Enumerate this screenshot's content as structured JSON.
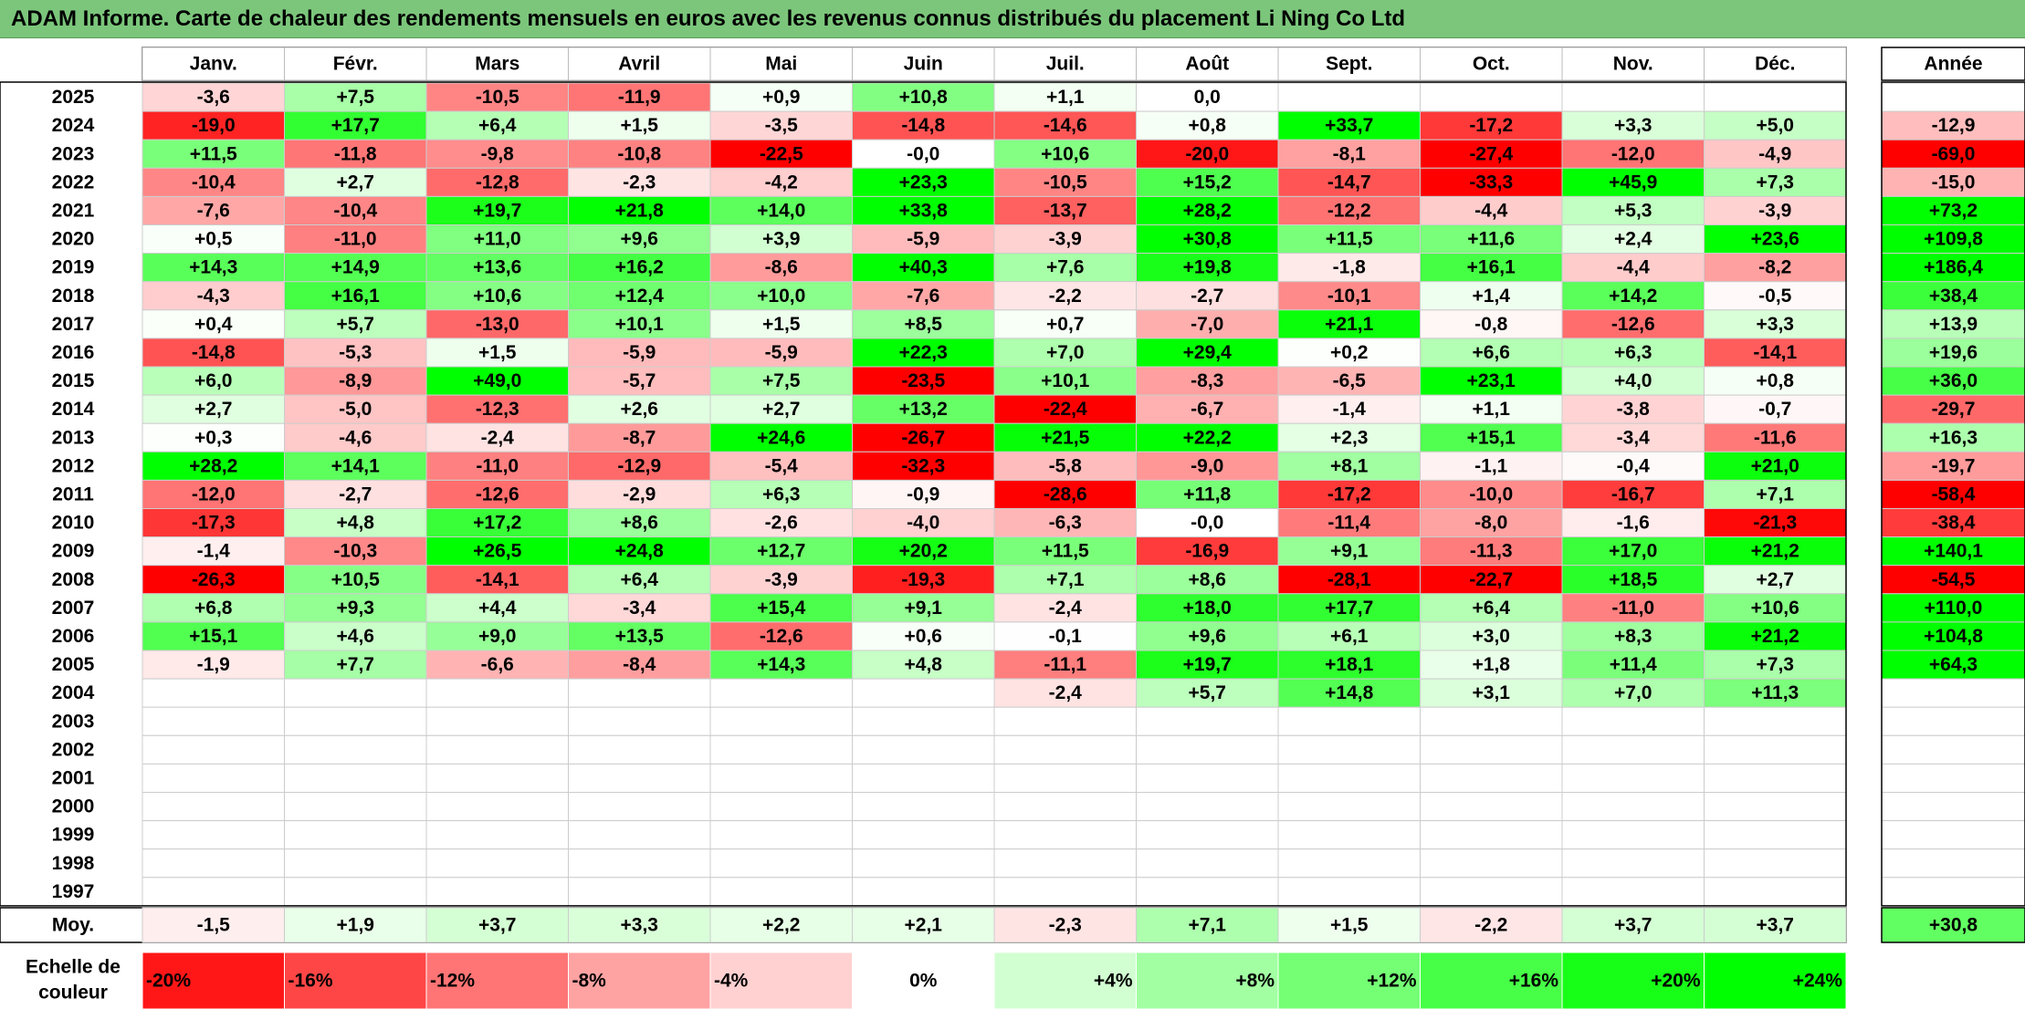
{
  "title": "ADAM Informe. Carte de chaleur des rendements mensuels en euros avec les revenus connus distribués du placement Li Ning Co Ltd",
  "chart_data": {
    "type": "heatmap",
    "title": "ADAM Informe. Carte de chaleur des rendements mensuels en euros avec les revenus connus distribués du placement Li Ning Co Ltd",
    "months": [
      "Janv.",
      "Févr.",
      "Mars",
      "Avril",
      "Mai",
      "Juin",
      "Juil.",
      "Août",
      "Sept.",
      "Oct.",
      "Nov.",
      "Déc."
    ],
    "year_header": "Année",
    "years": [
      "2025",
      "2024",
      "2023",
      "2022",
      "2021",
      "2020",
      "2019",
      "2018",
      "2017",
      "2016",
      "2015",
      "2014",
      "2013",
      "2012",
      "2011",
      "2010",
      "2009",
      "2008",
      "2007",
      "2006",
      "2005",
      "2004",
      "2003",
      "2002",
      "2001",
      "2000",
      "1999",
      "1998",
      "1997"
    ],
    "values": [
      [
        "-3,6",
        "+7,5",
        "-10,5",
        "-11,9",
        "+0,9",
        "+10,8",
        "+1,1",
        "0,0",
        "",
        "",
        "",
        ""
      ],
      [
        "-19,0",
        "+17,7",
        "+6,4",
        "+1,5",
        "-3,5",
        "-14,8",
        "-14,6",
        "+0,8",
        "+33,7",
        "-17,2",
        "+3,3",
        "+5,0"
      ],
      [
        "+11,5",
        "-11,8",
        "-9,8",
        "-10,8",
        "-22,5",
        "-0,0",
        "+10,6",
        "-20,0",
        "-8,1",
        "-27,4",
        "-12,0",
        "-4,9"
      ],
      [
        "-10,4",
        "+2,7",
        "-12,8",
        "-2,3",
        "-4,2",
        "+23,3",
        "-10,5",
        "+15,2",
        "-14,7",
        "-33,3",
        "+45,9",
        "+7,3"
      ],
      [
        "-7,6",
        "-10,4",
        "+19,7",
        "+21,8",
        "+14,0",
        "+33,8",
        "-13,7",
        "+28,2",
        "-12,2",
        "-4,4",
        "+5,3",
        "-3,9"
      ],
      [
        "+0,5",
        "-11,0",
        "+11,0",
        "+9,6",
        "+3,9",
        "-5,9",
        "-3,9",
        "+30,8",
        "+11,5",
        "+11,6",
        "+2,4",
        "+23,6"
      ],
      [
        "+14,3",
        "+14,9",
        "+13,6",
        "+16,2",
        "-8,6",
        "+40,3",
        "+7,6",
        "+19,8",
        "-1,8",
        "+16,1",
        "-4,4",
        "-8,2"
      ],
      [
        "-4,3",
        "+16,1",
        "+10,6",
        "+12,4",
        "+10,0",
        "-7,6",
        "-2,2",
        "-2,7",
        "-10,1",
        "+1,4",
        "+14,2",
        "-0,5"
      ],
      [
        "+0,4",
        "+5,7",
        "-13,0",
        "+10,1",
        "+1,5",
        "+8,5",
        "+0,7",
        "-7,0",
        "+21,1",
        "-0,8",
        "-12,6",
        "+3,3"
      ],
      [
        "-14,8",
        "-5,3",
        "+1,5",
        "-5,9",
        "-5,9",
        "+22,3",
        "+7,0",
        "+29,4",
        "+0,2",
        "+6,6",
        "+6,3",
        "-14,1"
      ],
      [
        "+6,0",
        "-8,9",
        "+49,0",
        "-5,7",
        "+7,5",
        "-23,5",
        "+10,1",
        "-8,3",
        "-6,5",
        "+23,1",
        "+4,0",
        "+0,8"
      ],
      [
        "+2,7",
        "-5,0",
        "-12,3",
        "+2,6",
        "+2,7",
        "+13,2",
        "-22,4",
        "-6,7",
        "-1,4",
        "+1,1",
        "-3,8",
        "-0,7"
      ],
      [
        "+0,3",
        "-4,6",
        "-2,4",
        "-8,7",
        "+24,6",
        "-26,7",
        "+21,5",
        "+22,2",
        "+2,3",
        "+15,1",
        "-3,4",
        "-11,6"
      ],
      [
        "+28,2",
        "+14,1",
        "-11,0",
        "-12,9",
        "-5,4",
        "-32,3",
        "-5,8",
        "-9,0",
        "+8,1",
        "-1,1",
        "-0,4",
        "+21,0"
      ],
      [
        "-12,0",
        "-2,7",
        "-12,6",
        "-2,9",
        "+6,3",
        "-0,9",
        "-28,6",
        "+11,8",
        "-17,2",
        "-10,0",
        "-16,7",
        "+7,1"
      ],
      [
        "-17,3",
        "+4,8",
        "+17,2",
        "+8,6",
        "-2,6",
        "-4,0",
        "-6,3",
        "-0,0",
        "-11,4",
        "-8,0",
        "-1,6",
        "-21,3"
      ],
      [
        "-1,4",
        "-10,3",
        "+26,5",
        "+24,8",
        "+12,7",
        "+20,2",
        "+11,5",
        "-16,9",
        "+9,1",
        "-11,3",
        "+17,0",
        "+21,2"
      ],
      [
        "-26,3",
        "+10,5",
        "-14,1",
        "+6,4",
        "-3,9",
        "-19,3",
        "+7,1",
        "+8,6",
        "-28,1",
        "-22,7",
        "+18,5",
        "+2,7"
      ],
      [
        "+6,8",
        "+9,3",
        "+4,4",
        "-3,4",
        "+15,4",
        "+9,1",
        "-2,4",
        "+18,0",
        "+17,7",
        "+6,4",
        "-11,0",
        "+10,6"
      ],
      [
        "+15,1",
        "+4,6",
        "+9,0",
        "+13,5",
        "-12,6",
        "+0,6",
        "-0,1",
        "+9,6",
        "+6,1",
        "+3,0",
        "+8,3",
        "+21,2"
      ],
      [
        "-1,9",
        "+7,7",
        "-6,6",
        "-8,4",
        "+14,3",
        "+4,8",
        "-11,1",
        "+19,7",
        "+18,1",
        "+1,8",
        "+11,4",
        "+7,3"
      ],
      [
        "",
        "",
        "",
        "",
        "",
        "",
        "-2,4",
        "+5,7",
        "+14,8",
        "+3,1",
        "+7,0",
        "+11,3"
      ],
      [
        "",
        "",
        "",
        "",
        "",
        "",
        "",
        "",
        "",
        "",
        "",
        ""
      ],
      [
        "",
        "",
        "",
        "",
        "",
        "",
        "",
        "",
        "",
        "",
        "",
        ""
      ],
      [
        "",
        "",
        "",
        "",
        "",
        "",
        "",
        "",
        "",
        "",
        "",
        ""
      ],
      [
        "",
        "",
        "",
        "",
        "",
        "",
        "",
        "",
        "",
        "",
        "",
        ""
      ],
      [
        "",
        "",
        "",
        "",
        "",
        "",
        "",
        "",
        "",
        "",
        "",
        ""
      ],
      [
        "",
        "",
        "",
        "",
        "",
        "",
        "",
        "",
        "",
        "",
        "",
        ""
      ],
      [
        "",
        "",
        "",
        "",
        "",
        "",
        "",
        "",
        "",
        "",
        "",
        ""
      ]
    ],
    "annual": [
      "",
      "-12,9",
      "-69,0",
      "-15,0",
      "+73,2",
      "+109,8",
      "+186,4",
      "+38,4",
      "+13,9",
      "+19,6",
      "+36,0",
      "-29,7",
      "+16,3",
      "-19,7",
      "-58,4",
      "-38,4",
      "+140,1",
      "-54,5",
      "+110,0",
      "+104,8",
      "+64,3",
      "",
      "",
      "",
      "",
      "",
      "",
      "",
      ""
    ],
    "average_label": "Moy.",
    "average": [
      "-1,5",
      "+1,9",
      "+3,7",
      "+3,3",
      "+2,2",
      "+2,1",
      "-2,3",
      "+7,1",
      "+1,5",
      "-2,2",
      "+3,7",
      "+3,7"
    ],
    "average_annual": "+30,8",
    "scale_label_line1": "Echelle de",
    "scale_label_line2": "couleur",
    "scale": [
      {
        "label": "-20%",
        "value": -20
      },
      {
        "label": "-16%",
        "value": -16
      },
      {
        "label": "-12%",
        "value": -12
      },
      {
        "label": "-8%",
        "value": -8
      },
      {
        "label": "-4%",
        "value": -4
      },
      {
        "label": "0%",
        "value": 0
      },
      {
        "label": "+4%",
        "value": 4
      },
      {
        "label": "+8%",
        "value": 8
      },
      {
        "label": "+12%",
        "value": 12
      },
      {
        "label": "+16%",
        "value": 16
      },
      {
        "label": "+20%",
        "value": 20
      },
      {
        "label": "+24%",
        "value": 24
      }
    ],
    "colors": {
      "negative": "#ff0000",
      "positive": "#00ff00",
      "neutral": "#ffffff",
      "title_bar": "#7bc67b"
    }
  }
}
